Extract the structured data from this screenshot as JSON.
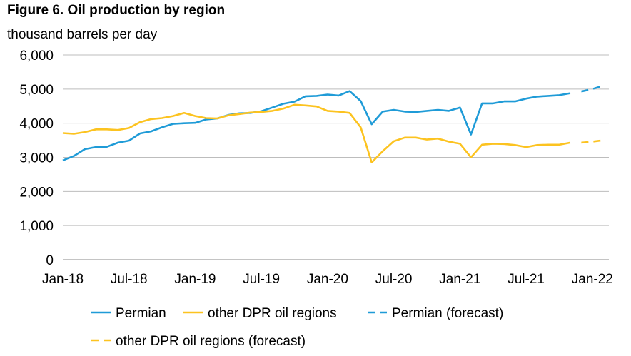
{
  "colors": {
    "permian": "#1f9bd7",
    "other": "#fcc320",
    "grid": "#bdbdbd",
    "axis": "#8a8a8a"
  },
  "chart_data": {
    "type": "line",
    "title": "Figure 6. Oil production by region",
    "ylabel": "thousand barrels per day",
    "ylim": [
      0,
      6000
    ],
    "yticks": [
      {
        "value": 0,
        "label": "0"
      },
      {
        "value": 1000,
        "label": "1,000"
      },
      {
        "value": 2000,
        "label": "2,000"
      },
      {
        "value": 3000,
        "label": "3,000"
      },
      {
        "value": 4000,
        "label": "4,000"
      },
      {
        "value": 5000,
        "label": "5,000"
      },
      {
        "value": 6000,
        "label": "6,000"
      }
    ],
    "xticks": [
      {
        "index": 0,
        "label": "Jan-18"
      },
      {
        "index": 6,
        "label": "Jul-18"
      },
      {
        "index": 12,
        "label": "Jan-19"
      },
      {
        "index": 18,
        "label": "Jul-19"
      },
      {
        "index": 24,
        "label": "Jan-20"
      },
      {
        "index": 30,
        "label": "Jul-20"
      },
      {
        "index": 36,
        "label": "Jan-21"
      },
      {
        "index": 42,
        "label": "Jul-21"
      },
      {
        "index": 48,
        "label": "Jan-22"
      }
    ],
    "x_range": [
      0,
      49.5
    ],
    "grid": true,
    "series": [
      {
        "name": "Permian",
        "style": "solid",
        "color_key": "permian",
        "start_index": 0,
        "values": [
          2910,
          3040,
          3240,
          3300,
          3310,
          3430,
          3490,
          3700,
          3760,
          3880,
          3980,
          4000,
          4010,
          4110,
          4140,
          4240,
          4290,
          4300,
          4350,
          4460,
          4570,
          4630,
          4790,
          4800,
          4840,
          4810,
          4940,
          4650,
          3970,
          4340,
          4390,
          4340,
          4330,
          4360,
          4390,
          4360,
          4460,
          3670,
          4580,
          4580,
          4640,
          4640,
          4720,
          4780,
          4800,
          4820,
          4880
        ]
      },
      {
        "name": "other DPR oil regions",
        "style": "solid",
        "color_key": "other",
        "start_index": 0,
        "values": [
          3710,
          3690,
          3740,
          3820,
          3820,
          3800,
          3860,
          4030,
          4120,
          4150,
          4210,
          4300,
          4210,
          4150,
          4140,
          4230,
          4270,
          4310,
          4330,
          4360,
          4430,
          4540,
          4520,
          4490,
          4360,
          4340,
          4300,
          3880,
          2850,
          3180,
          3470,
          3580,
          3580,
          3520,
          3550,
          3460,
          3400,
          3000,
          3370,
          3400,
          3390,
          3360,
          3300,
          3360,
          3370,
          3370,
          3430
        ]
      },
      {
        "name": "Permian (forecast)",
        "style": "dashed",
        "color_key": "permian",
        "start_index": 47,
        "values": [
          4930,
          5000,
          5100
        ]
      },
      {
        "name": "other DPR oil regions (forecast)",
        "style": "dashed",
        "color_key": "other",
        "start_index": 47,
        "values": [
          3430,
          3460,
          3500
        ]
      }
    ],
    "legend": [
      {
        "label": "Permian",
        "color_key": "permian",
        "style": "solid"
      },
      {
        "label": "other DPR oil regions",
        "color_key": "other",
        "style": "solid"
      },
      {
        "label": "Permian (forecast)",
        "color_key": "permian",
        "style": "dashed"
      },
      {
        "label": "other DPR oil regions (forecast)",
        "color_key": "other",
        "style": "dashed"
      }
    ]
  }
}
